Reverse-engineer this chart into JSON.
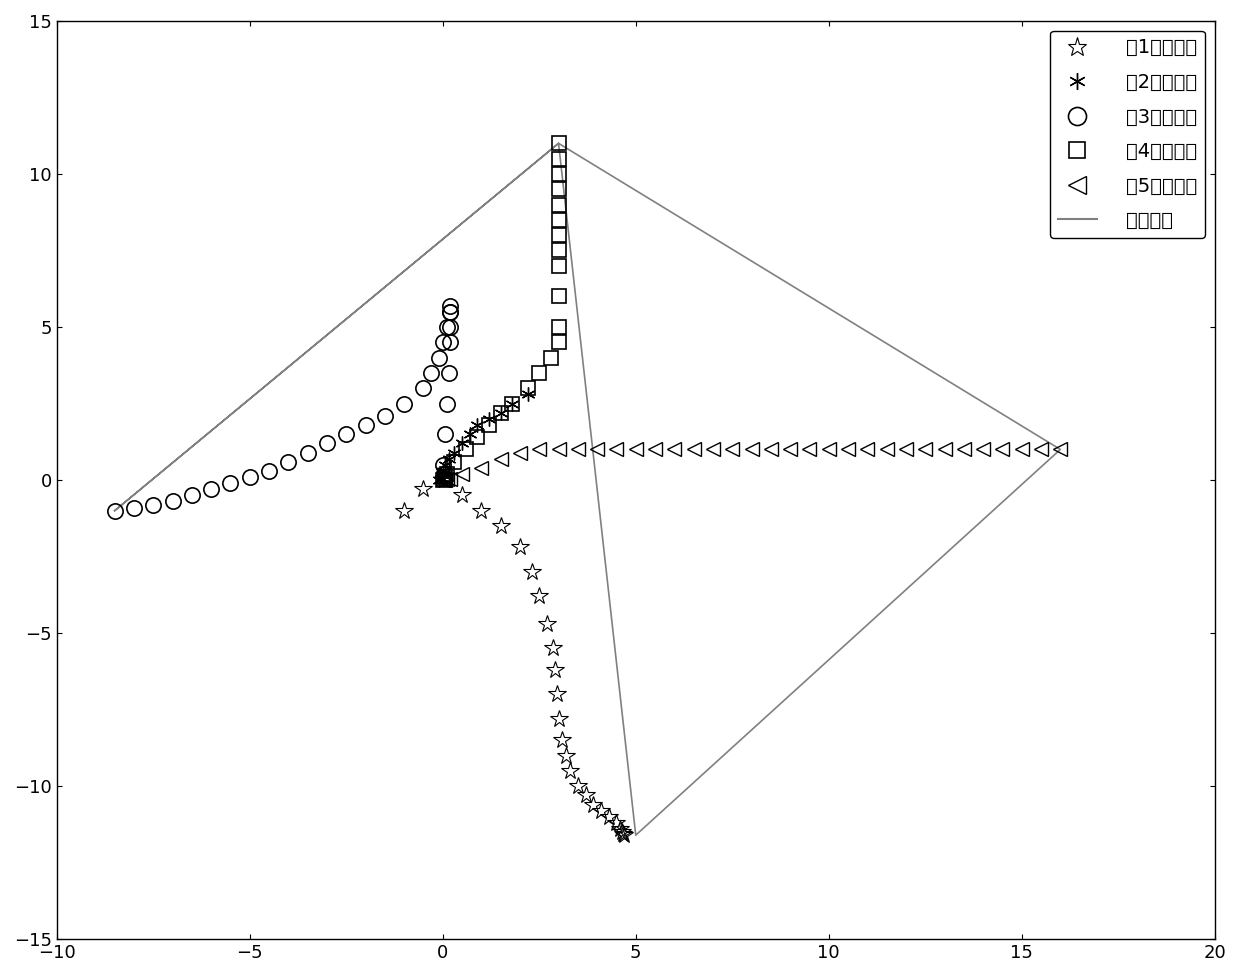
{
  "xlim": [
    -10,
    20
  ],
  "ylim": [
    -15,
    15
  ],
  "xticks": [
    -10,
    -5,
    0,
    5,
    10,
    15,
    20
  ],
  "yticks": [
    -15,
    -10,
    -5,
    0,
    5,
    10,
    15
  ],
  "background_color": "#ffffff",
  "formation_color": "#808080",
  "robot_color": "#000000",
  "legend_labels": [
    "第1个机器人",
    "第2个机器人",
    "第3个机器人",
    "第4个机器人",
    "第5个机器人",
    "最终队形"
  ],
  "robot1_x": [
    -0.5,
    -1.0,
    0.5,
    1.0,
    1.5,
    2.0,
    2.3,
    2.5,
    2.7,
    2.85,
    2.9,
    2.95,
    3.0,
    3.1,
    3.2,
    3.3,
    3.5,
    3.7,
    3.9,
    4.1,
    4.3,
    4.5,
    4.6,
    4.65,
    4.68,
    4.7
  ],
  "robot1_y": [
    -0.3,
    -1.0,
    -0.5,
    -1.0,
    -1.5,
    -2.2,
    -3.0,
    -3.8,
    -4.7,
    -5.5,
    -6.2,
    -7.0,
    -7.8,
    -8.5,
    -9.0,
    -9.5,
    -10.0,
    -10.3,
    -10.6,
    -10.8,
    -11.0,
    -11.2,
    -11.4,
    -11.5,
    -11.55,
    -11.6
  ],
  "robot2_x": [
    2.2,
    1.8,
    1.5,
    1.2,
    0.9,
    0.7,
    0.5,
    0.3,
    0.15,
    0.05,
    0.0,
    0.0,
    0.0,
    -0.05,
    -0.1
  ],
  "robot2_y": [
    2.8,
    2.5,
    2.2,
    2.0,
    1.8,
    1.5,
    1.2,
    0.9,
    0.7,
    0.5,
    0.3,
    0.15,
    0.05,
    0.02,
    0.0
  ],
  "robot3_x": [
    -8.5,
    -8.0,
    -7.5,
    -7.0,
    -6.5,
    -6.0,
    -5.5,
    -5.0,
    -4.5,
    -4.0,
    -3.5,
    -3.0,
    -2.5,
    -2.0,
    -1.5,
    -1.0,
    -0.5,
    -0.3,
    -0.1,
    0.0,
    0.1,
    0.2,
    0.2,
    0.2,
    0.2,
    0.2,
    0.15,
    0.1,
    0.05,
    0.0
  ],
  "robot3_y": [
    -1.0,
    -0.9,
    -0.8,
    -0.7,
    -0.5,
    -0.3,
    -0.1,
    0.1,
    0.3,
    0.6,
    0.9,
    1.2,
    1.5,
    1.8,
    2.1,
    2.5,
    3.0,
    3.5,
    4.0,
    4.5,
    5.0,
    5.5,
    5.7,
    5.5,
    5.0,
    4.5,
    3.5,
    2.5,
    1.5,
    0.5
  ],
  "robot4_x": [
    3.0,
    3.0,
    3.0,
    3.0,
    3.0,
    3.0,
    3.0,
    3.0,
    3.0,
    3.0,
    3.0,
    3.0,
    2.8,
    2.5,
    2.2,
    1.8,
    1.5,
    1.2,
    0.9,
    0.6,
    0.3,
    0.1,
    0.05,
    0.02,
    0.0
  ],
  "robot4_y": [
    11.0,
    10.5,
    10.0,
    9.5,
    9.0,
    8.5,
    8.0,
    7.5,
    7.0,
    6.0,
    5.0,
    4.5,
    4.0,
    3.5,
    3.0,
    2.5,
    2.2,
    1.8,
    1.4,
    1.0,
    0.6,
    0.2,
    0.1,
    0.02,
    0.0
  ],
  "robot5_x": [
    16.0,
    15.5,
    15.0,
    14.5,
    14.0,
    13.5,
    13.0,
    12.5,
    12.0,
    11.5,
    11.0,
    10.5,
    10.0,
    9.5,
    9.0,
    8.5,
    8.0,
    7.5,
    7.0,
    6.5,
    6.0,
    5.5,
    5.0,
    4.5,
    4.0,
    3.5,
    3.0,
    2.5,
    2.0,
    1.5,
    1.0,
    0.5,
    0.2,
    0.1,
    0.05,
    0.02,
    0.0
  ],
  "robot5_y": [
    1.0,
    1.0,
    1.0,
    1.0,
    1.0,
    1.0,
    1.0,
    1.0,
    1.0,
    1.0,
    1.0,
    1.0,
    1.0,
    1.0,
    1.0,
    1.0,
    1.0,
    1.0,
    1.0,
    1.0,
    1.0,
    1.0,
    1.0,
    1.0,
    1.0,
    1.0,
    1.0,
    1.0,
    0.9,
    0.7,
    0.4,
    0.2,
    0.05,
    0.02,
    0.01,
    0.005,
    0.0
  ],
  "formation_x": [
    -8.5,
    3.0,
    16.0,
    5.0,
    3.0,
    -8.5
  ],
  "formation_y": [
    -1.0,
    11.0,
    1.0,
    -11.6,
    11.0,
    -1.0
  ]
}
